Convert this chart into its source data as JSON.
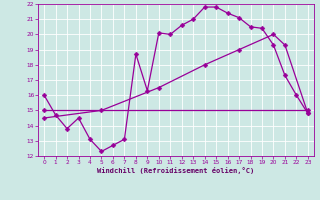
{
  "bg_color": "#cde8e4",
  "line_color": "#990099",
  "grid_color": "#ffffff",
  "xlabel": "Windchill (Refroidissement éolien,°C)",
  "xlabel_color": "#660066",
  "xlim": [
    -0.5,
    23.5
  ],
  "ylim": [
    12,
    22
  ],
  "xticks": [
    0,
    1,
    2,
    3,
    4,
    5,
    6,
    7,
    8,
    9,
    10,
    11,
    12,
    13,
    14,
    15,
    16,
    17,
    18,
    19,
    20,
    21,
    22,
    23
  ],
  "yticks": [
    12,
    13,
    14,
    15,
    16,
    17,
    18,
    19,
    20,
    21,
    22
  ],
  "line1_x": [
    0,
    1,
    2,
    3,
    4,
    5,
    6,
    7,
    8,
    9,
    10,
    11,
    12,
    13,
    14,
    15,
    16,
    17,
    18,
    19,
    20,
    21,
    22,
    23
  ],
  "line1_y": [
    16.0,
    14.7,
    13.8,
    14.5,
    13.1,
    12.3,
    12.7,
    13.1,
    18.7,
    16.3,
    20.1,
    20.0,
    20.6,
    21.0,
    21.8,
    21.8,
    21.4,
    21.1,
    20.5,
    20.4,
    19.3,
    17.3,
    16.0,
    14.8
  ],
  "line2_x": [
    0,
    23
  ],
  "line2_y": [
    15.0,
    15.0
  ],
  "line3_x": [
    0,
    5,
    10,
    14,
    17,
    20,
    21,
    23
  ],
  "line3_y": [
    14.5,
    15.0,
    16.5,
    18.0,
    19.0,
    20.0,
    19.3,
    14.8
  ],
  "marker": "D",
  "markersize": 2.5,
  "linewidth": 0.9
}
